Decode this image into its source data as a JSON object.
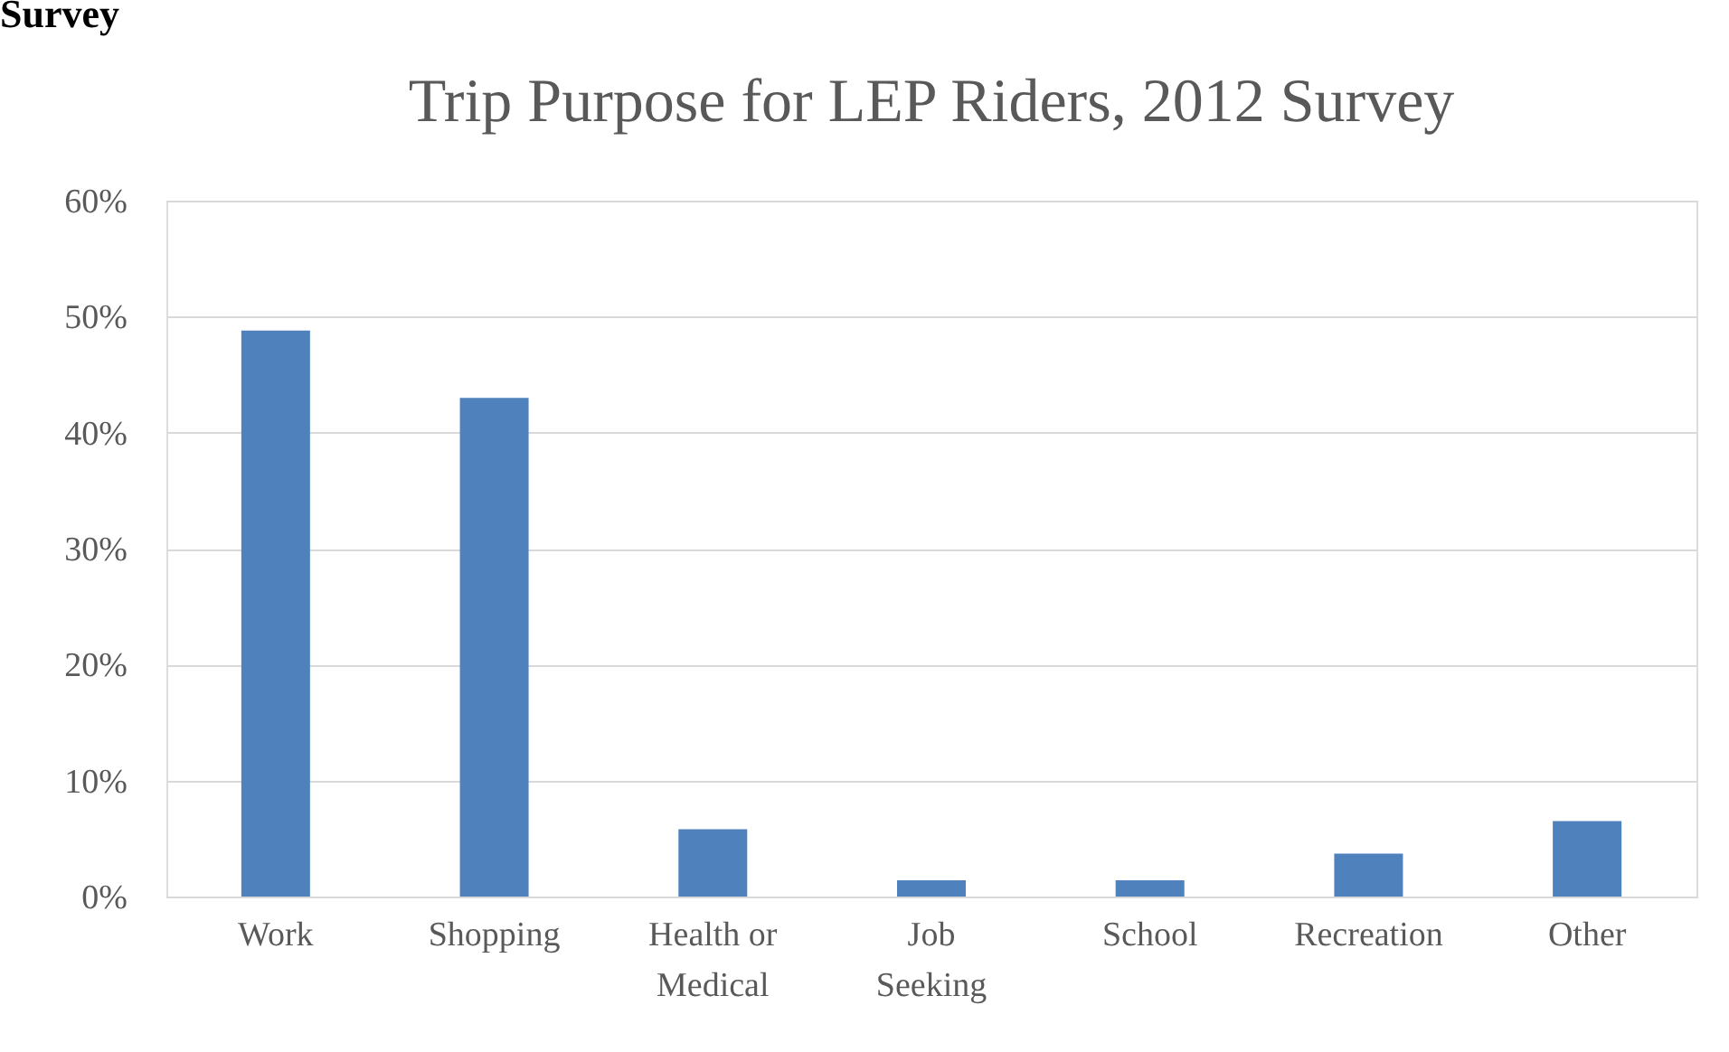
{
  "chart_data": {
    "type": "bar",
    "title": "Trip Purpose for LEP Riders, 2012 Survey",
    "annotations": [
      "Survey"
    ],
    "categories": [
      "Work",
      "Shopping",
      "Health or Medical",
      "Job Seeking",
      "School",
      "Recreation",
      "Other"
    ],
    "values": [
      48.8,
      43.0,
      5.8,
      1.4,
      1.4,
      3.7,
      6.5
    ],
    "color": "#4f81bd",
    "ylim": [
      0,
      60
    ],
    "yticks": [
      {
        "value": 0,
        "label": "0%"
      },
      {
        "value": 10,
        "label": "10%"
      },
      {
        "value": 20,
        "label": "20%"
      },
      {
        "value": 30,
        "label": "30%"
      },
      {
        "value": 40,
        "label": "40%"
      },
      {
        "value": 50,
        "label": "50%"
      },
      {
        "value": 60,
        "label": "60%"
      }
    ],
    "grid": "y",
    "legend": false
  }
}
